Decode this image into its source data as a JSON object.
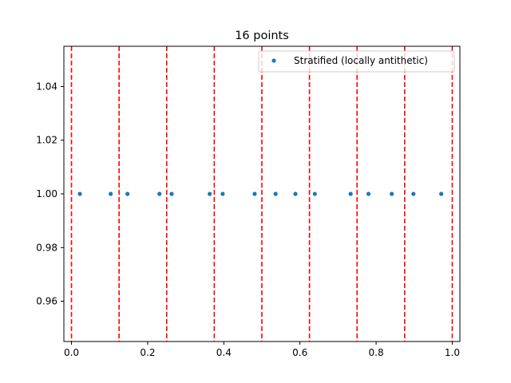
{
  "chart_data": {
    "type": "scatter",
    "title": "16 points",
    "xlabel": "",
    "ylabel": "",
    "xlim": [
      -0.02,
      1.02
    ],
    "ylim": [
      0.945,
      1.055
    ],
    "x_ticks": [
      0.0,
      0.2,
      0.4,
      0.6,
      0.8,
      1.0
    ],
    "x_tick_labels": [
      "0.0",
      "0.2",
      "0.4",
      "0.6",
      "0.8",
      "1.0"
    ],
    "y_ticks": [
      0.96,
      0.98,
      1.0,
      1.02,
      1.04
    ],
    "y_tick_labels": [
      "0.96",
      "0.98",
      "1.00",
      "1.02",
      "1.04"
    ],
    "grid": false,
    "legend_position": "top-right",
    "series": [
      {
        "name": "Stratified (locally antithetic)",
        "color": "#1f77b4",
        "marker": "dot",
        "x": [
          0.022,
          0.103,
          0.147,
          0.231,
          0.263,
          0.363,
          0.397,
          0.481,
          0.536,
          0.588,
          0.639,
          0.733,
          0.78,
          0.841,
          0.898,
          0.971
        ],
        "y": [
          1,
          1,
          1,
          1,
          1,
          1,
          1,
          1,
          1,
          1,
          1,
          1,
          1,
          1,
          1,
          1
        ]
      }
    ],
    "vertical_lines": {
      "color": "#ff0000",
      "style": "dashed",
      "x": [
        0.0,
        0.125,
        0.25,
        0.375,
        0.5,
        0.625,
        0.75,
        0.875,
        1.0
      ]
    }
  }
}
